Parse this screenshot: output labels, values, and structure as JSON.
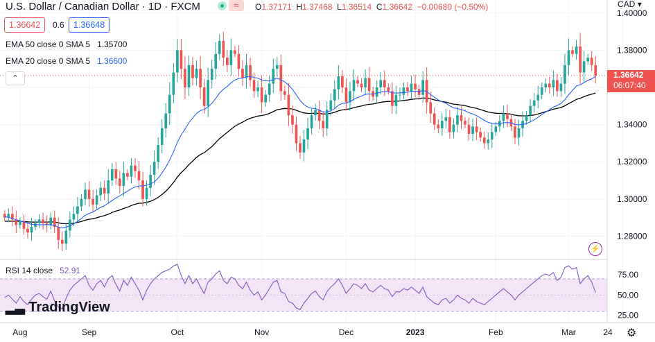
{
  "header": {
    "title": "U.S. Dollar / Canadian Dollar · 1D · FXCM",
    "flag_glyph": "≈",
    "ohlc": {
      "o_label": "O",
      "o": "1.37171",
      "h_label": "H",
      "h": "1.37468",
      "l_label": "L",
      "l": "1.36514",
      "c_label": "C",
      "c": "1.36642",
      "change": "−0.00680 (−0.50%)"
    },
    "sell_price": "1.36642",
    "spread": "0.6",
    "buy_price": "1.36648"
  },
  "legend": {
    "ema50_label": "EMA 50 close 0 SMA 5",
    "ema50_value": "1.35700",
    "ema20_label": "EMA 20 close 0 SMA 5",
    "ema20_value": "1.36600",
    "rsi_label": "RSI 14 close",
    "rsi_value": "52.91",
    "collapse_glyph": "⌃"
  },
  "axis": {
    "currency": "CAD",
    "last_price": "1.36642",
    "countdown": "06:07:40"
  },
  "brand": {
    "logo_text": "TradingView"
  },
  "colors": {
    "up": "#26a69a",
    "down": "#ef5350",
    "ema20": "#2962ff",
    "ema50": "#000000",
    "rsi": "#7e57c2",
    "rsi_band": "#f3e5f5"
  },
  "chart_data": {
    "type": "candlestick",
    "symbol": "USDCAD",
    "interval": "1D",
    "ylim": [
      1.26,
      1.4
    ],
    "y_ticks": [
      "1.40000",
      "1.38000",
      "1.36000",
      "1.34000",
      "1.32000",
      "1.30000",
      "1.28000"
    ],
    "x_ticks": [
      "Aug",
      "Sep",
      "Oct",
      "Nov",
      "Dec",
      "2023",
      "Feb",
      "Mar",
      "24"
    ],
    "close": [
      1.29,
      1.292,
      1.289,
      1.286,
      1.288,
      1.284,
      1.282,
      1.285,
      1.287,
      1.289,
      1.287,
      1.286,
      1.29,
      1.285,
      1.278,
      1.276,
      1.283,
      1.289,
      1.292,
      1.296,
      1.3,
      1.305,
      1.3,
      1.297,
      1.302,
      1.306,
      1.303,
      1.31,
      1.316,
      1.311,
      1.307,
      1.314,
      1.312,
      1.318,
      1.315,
      1.31,
      1.3,
      1.306,
      1.313,
      1.32,
      1.329,
      1.338,
      1.346,
      1.356,
      1.368,
      1.38,
      1.37,
      1.36,
      1.372,
      1.365,
      1.37,
      1.36,
      1.35,
      1.364,
      1.37,
      1.378,
      1.385,
      1.376,
      1.372,
      1.38,
      1.378,
      1.37,
      1.365,
      1.372,
      1.364,
      1.358,
      1.36,
      1.352,
      1.356,
      1.362,
      1.37,
      1.372,
      1.358,
      1.356,
      1.345,
      1.34,
      1.33,
      1.325,
      1.332,
      1.338,
      1.345,
      1.348,
      1.342,
      1.338,
      1.348,
      1.353,
      1.359,
      1.366,
      1.36,
      1.352,
      1.358,
      1.364,
      1.362,
      1.36,
      1.365,
      1.358,
      1.355,
      1.36,
      1.364,
      1.36,
      1.358,
      1.35,
      1.356,
      1.356,
      1.36,
      1.358,
      1.362,
      1.359,
      1.356,
      1.364,
      1.352,
      1.346,
      1.34,
      1.338,
      1.342,
      1.344,
      1.336,
      1.34,
      1.345,
      1.342,
      1.34,
      1.335,
      1.339,
      1.336,
      1.333,
      1.33,
      1.332,
      1.336,
      1.339,
      1.342,
      1.346,
      1.343,
      1.339,
      1.333,
      1.338,
      1.342,
      1.345,
      1.35,
      1.353,
      1.356,
      1.36,
      1.362,
      1.36,
      1.364,
      1.358,
      1.362,
      1.372,
      1.38,
      1.378,
      1.382,
      1.368,
      1.374,
      1.376,
      1.372,
      1.3664
    ],
    "ema20": [
      1.2905,
      1.2901,
      1.2895,
      1.2888,
      1.2883,
      1.2876,
      1.287,
      1.2864,
      1.2862,
      1.2862,
      1.2862,
      1.2862,
      1.2861,
      1.2858,
      1.2849,
      1.2845,
      1.2848,
      1.2856,
      1.2866,
      1.288,
      1.2895,
      1.2912,
      1.2922,
      1.293,
      1.2942,
      1.2955,
      1.2964,
      1.2978,
      1.2992,
      1.3006,
      1.3017,
      1.303,
      1.3042,
      1.3055,
      1.3065,
      1.307,
      1.307,
      1.3074,
      1.3081,
      1.3092,
      1.3112,
      1.314,
      1.3172,
      1.321,
      1.3253,
      1.3305,
      1.3345,
      1.3375,
      1.341,
      1.3435,
      1.346,
      1.3475,
      1.3482,
      1.3495,
      1.3515,
      1.354,
      1.357,
      1.359,
      1.3605,
      1.3625,
      1.364,
      1.3648,
      1.365,
      1.3658,
      1.3659,
      1.3654,
      1.365,
      1.364,
      1.3635,
      1.3635,
      1.3642,
      1.365,
      1.364,
      1.363,
      1.3612,
      1.359,
      1.356,
      1.353,
      1.3508,
      1.3494,
      1.3488,
      1.3486,
      1.3478,
      1.3468,
      1.3468,
      1.3474,
      1.3486,
      1.3504,
      1.3514,
      1.3515,
      1.3524,
      1.3536,
      1.3546,
      1.3553,
      1.3563,
      1.3565,
      1.3564,
      1.3568,
      1.3575,
      1.3578,
      1.3578,
      1.3571,
      1.357,
      1.357,
      1.3573,
      1.3574,
      1.3578,
      1.358,
      1.3578,
      1.3584,
      1.3577,
      1.3562,
      1.3547,
      1.3533,
      1.3523,
      1.3515,
      1.35,
      1.349,
      1.3486,
      1.3481,
      1.3474,
      1.3464,
      1.3457,
      1.3448,
      1.3436,
      1.3423,
      1.3412,
      1.3406,
      1.3404,
      1.3405,
      1.341,
      1.3411,
      1.3409,
      1.3401,
      1.3399,
      1.3401,
      1.3406,
      1.3415,
      1.3426,
      1.3439,
      1.3454,
      1.3468,
      1.348,
      1.3495,
      1.3503,
      1.3514,
      1.3534,
      1.3561,
      1.3584,
      1.3608,
      1.3614,
      1.3626,
      1.3638,
      1.3646,
      1.366
    ],
    "ema50": [
      1.288,
      1.2881,
      1.2881,
      1.288,
      1.288,
      1.2879,
      1.2877,
      1.2876,
      1.2876,
      1.2876,
      1.2876,
      1.2876,
      1.2877,
      1.2876,
      1.2872,
      1.2868,
      1.2867,
      1.2868,
      1.287,
      1.2874,
      1.2879,
      1.2886,
      1.2891,
      1.2894,
      1.2899,
      1.2906,
      1.2911,
      1.2918,
      1.2928,
      1.2935,
      1.2941,
      1.2949,
      1.2956,
      1.2965,
      1.2972,
      1.2977,
      1.2978,
      1.2982,
      1.2988,
      1.2997,
      1.3009,
      1.3024,
      1.3042,
      1.3064,
      1.3089,
      1.3118,
      1.3142,
      1.3161,
      1.3185,
      1.3204,
      1.3224,
      1.3239,
      1.3249,
      1.3265,
      1.3282,
      1.3303,
      1.3325,
      1.3342,
      1.3358,
      1.3375,
      1.3391,
      1.3403,
      1.3413,
      1.3425,
      1.3434,
      1.344,
      1.3446,
      1.3449,
      1.3453,
      1.346,
      1.347,
      1.348,
      1.3484,
      1.3487,
      1.3486,
      1.3484,
      1.3477,
      1.3469,
      1.3463,
      1.346,
      1.346,
      1.3461,
      1.346,
      1.3457,
      1.3458,
      1.3461,
      1.3466,
      1.3474,
      1.3479,
      1.3481,
      1.3485,
      1.3491,
      1.3496,
      1.35,
      1.3506,
      1.3509,
      1.3511,
      1.3515,
      1.352,
      1.3523,
      1.3525,
      1.3524,
      1.3526,
      1.3527,
      1.353,
      1.3532,
      1.3536,
      1.3538,
      1.3539,
      1.3543,
      1.3542,
      1.3539,
      1.3533,
      1.3528,
      1.3524,
      1.3521,
      1.3515,
      1.351,
      1.3508,
      1.3505,
      1.3502,
      1.3496,
      1.3492,
      1.3487,
      1.3481,
      1.3474,
      1.3468,
      1.3464,
      1.3461,
      1.346,
      1.346,
      1.3459,
      1.3456,
      1.3451,
      1.3448,
      1.3447,
      1.3447,
      1.3449,
      1.3452,
      1.3457,
      1.3463,
      1.347,
      1.3476,
      1.3483,
      1.3487,
      1.3492,
      1.3501,
      1.3513,
      1.3524,
      1.3536,
      1.3542,
      1.355,
      1.3558,
      1.3564,
      1.357
    ],
    "rsi": {
      "ylim": [
        25,
        90
      ],
      "y_ticks": [
        "75.00",
        "50.00",
        "25.00"
      ],
      "bands": [
        30,
        70
      ],
      "values": [
        47,
        50,
        45,
        40,
        48,
        42,
        38,
        45,
        50,
        52,
        48,
        45,
        55,
        43,
        35,
        33,
        46,
        56,
        62,
        66,
        70,
        74,
        62,
        56,
        64,
        68,
        60,
        70,
        74,
        63,
        55,
        68,
        62,
        72,
        64,
        56,
        44,
        56,
        64,
        70,
        74,
        78,
        80,
        82,
        86,
        88,
        74,
        64,
        74,
        64,
        70,
        60,
        52,
        66,
        70,
        76,
        80,
        68,
        64,
        72,
        70,
        62,
        58,
        66,
        56,
        50,
        54,
        44,
        50,
        58,
        66,
        68,
        54,
        52,
        42,
        40,
        34,
        32,
        40,
        46,
        52,
        55,
        48,
        44,
        54,
        60,
        64,
        70,
        62,
        52,
        58,
        64,
        62,
        58,
        64,
        56,
        54,
        58,
        62,
        58,
        56,
        48,
        54,
        54,
        58,
        56,
        60,
        56,
        52,
        60,
        48,
        44,
        40,
        38,
        44,
        46,
        40,
        44,
        50,
        46,
        44,
        40,
        46,
        42,
        40,
        38,
        42,
        46,
        50,
        54,
        58,
        54,
        50,
        44,
        50,
        54,
        58,
        62,
        66,
        70,
        74,
        76,
        74,
        78,
        68,
        72,
        84,
        86,
        82,
        84,
        64,
        70,
        74,
        66,
        53
      ]
    }
  }
}
